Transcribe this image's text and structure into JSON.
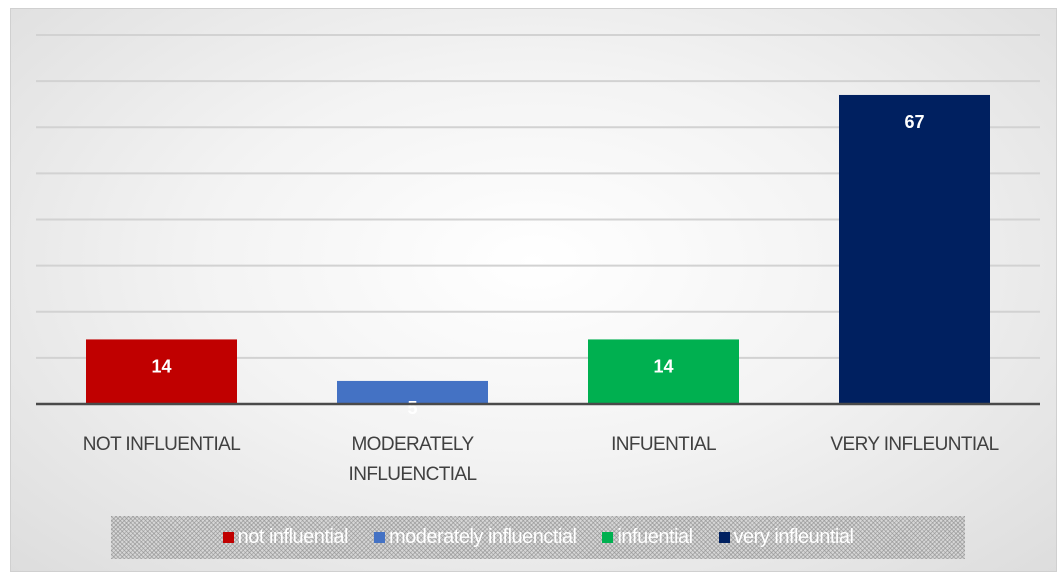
{
  "chart_data": {
    "type": "bar",
    "categories": [
      "NOT INFLUENTIAL",
      "MODERATELY INFLUENCTIAL",
      "INFUENTIAL",
      "VERY INFLEUNTIAL"
    ],
    "category_lines": [
      [
        "NOT INFLUENTIAL"
      ],
      [
        "MODERATELY",
        "INFLUENCTIAL"
      ],
      [
        "INFUENTIAL"
      ],
      [
        "VERY INFLEUNTIAL"
      ]
    ],
    "values": [
      14,
      5,
      14,
      67
    ],
    "data_labels": [
      "14",
      "5",
      "14",
      "67"
    ],
    "colors": [
      "#c00000",
      "#4472c4",
      "#00b050",
      "#002060"
    ],
    "ylim": [
      0,
      80
    ],
    "gridlines": true,
    "legend": {
      "position": "bottom",
      "entries": [
        "not influential",
        "moderately influenctial",
        "infuential",
        "very infleuntial"
      ]
    },
    "title": "",
    "xlabel": "",
    "ylabel": ""
  }
}
